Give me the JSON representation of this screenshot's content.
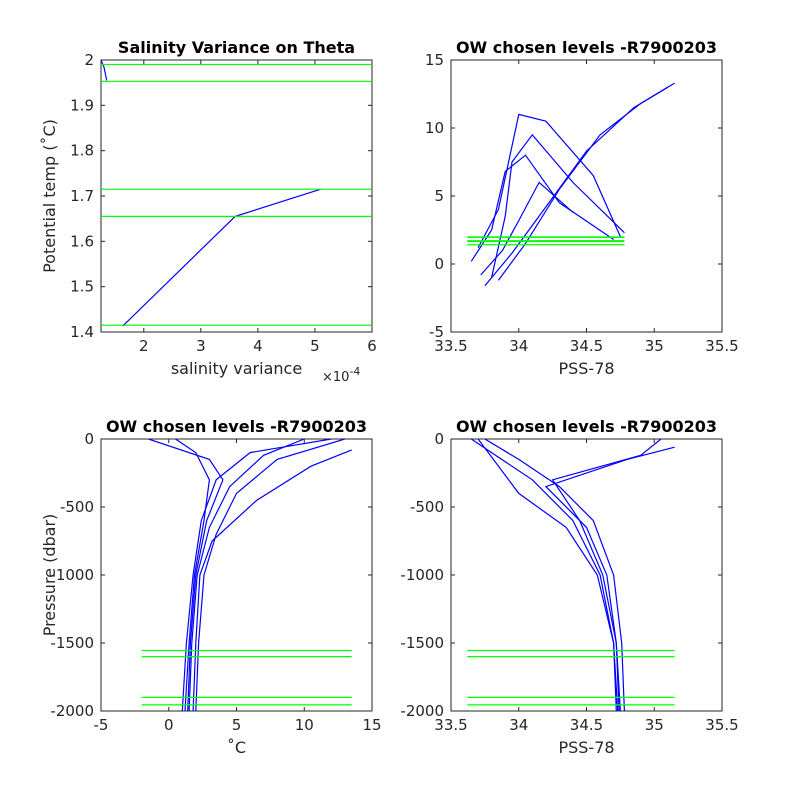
{
  "colors": {
    "profile": "#0000FF",
    "level": "#00FF00",
    "axis": "#262626"
  },
  "chart_data": [
    {
      "type": "line",
      "title": "Salinity Variance on Theta",
      "xlabel": "salinity variance",
      "x_exponent": "×10",
      "x_exponent_power": "-4",
      "ylabel": "Potential temp (˚C)",
      "xlim": [
        1.25,
        6
      ],
      "ylim": [
        1.4,
        2
      ],
      "xticks": [
        "2",
        "3",
        "4",
        "5",
        "6"
      ],
      "yticks": [
        "1.4",
        "1.5",
        "1.6",
        "1.7",
        "1.8",
        "1.9",
        "2"
      ],
      "grid": false,
      "series": [
        {
          "x": [
            1.63,
            3.6,
            5.1
          ],
          "y": [
            1.413,
            1.655,
            1.715
          ]
        },
        {
          "x": [
            1.25,
            1.3,
            1.35
          ],
          "y": [
            2.0,
            1.985,
            1.955
          ]
        }
      ],
      "hlines": [
        1.99,
        1.953,
        1.715,
        1.655,
        1.415
      ]
    },
    {
      "type": "line",
      "title": "OW chosen levels -R7900203",
      "xlabel": "PSS-78",
      "ylabel": "",
      "xlim": [
        33.5,
        35.5
      ],
      "ylim": [
        -5,
        15
      ],
      "xticks": [
        "33.5",
        "34",
        "34.5",
        "35",
        "35.5"
      ],
      "yticks": [
        "-5",
        "0",
        "5",
        "10",
        "15"
      ],
      "grid": false,
      "series": [
        {
          "x": [
            33.85,
            34.05,
            34.3,
            34.6,
            34.9,
            35.1
          ],
          "y": [
            -1.2,
            1.5,
            5.5,
            9.5,
            11.8,
            13.0
          ]
        },
        {
          "x": [
            33.75,
            33.95,
            34.2,
            34.5,
            34.85,
            35.15
          ],
          "y": [
            -1.6,
            0.8,
            4.2,
            8.3,
            11.5,
            13.3
          ]
        },
        {
          "x": [
            33.8,
            33.9,
            33.95,
            34.1,
            34.4,
            34.78
          ],
          "y": [
            -1.0,
            3.5,
            7.5,
            9.5,
            6.0,
            2.3
          ]
        },
        {
          "x": [
            33.65,
            33.8,
            33.9,
            34.05,
            34.3,
            34.7
          ],
          "y": [
            0.2,
            2.5,
            6.8,
            8.0,
            4.5,
            1.8
          ]
        },
        {
          "x": [
            33.7,
            33.85,
            34.0,
            34.2,
            34.55,
            34.75
          ],
          "y": [
            1.2,
            4.0,
            11.0,
            10.5,
            6.5,
            2.0
          ]
        },
        {
          "x": [
            33.72,
            33.88,
            34.0,
            34.15,
            34.4
          ],
          "y": [
            -0.8,
            1.0,
            3.2,
            6.0,
            3.8
          ]
        }
      ],
      "hlines": [
        1.99,
        1.953,
        1.715,
        1.655,
        1.415
      ],
      "hline_xrange": [
        33.62,
        34.78
      ]
    },
    {
      "type": "line",
      "title": "OW chosen levels -R7900203",
      "xlabel": "˚C",
      "ylabel": "Pressure (dbar)",
      "xlim": [
        -5,
        15
      ],
      "ylim": [
        -2000,
        0
      ],
      "xticks": [
        "-5",
        "0",
        "5",
        "10",
        "15"
      ],
      "yticks": [
        "-2000",
        "-1500",
        "-1000",
        "-500",
        "0"
      ],
      "grid": false,
      "series": [
        {
          "x": [
            1.0,
            1.3,
            1.8,
            2.4,
            3.5,
            6.0,
            12.0
          ],
          "y": [
            -2000,
            -1500,
            -1000,
            -600,
            -300,
            -100,
            0
          ]
        },
        {
          "x": [
            2.0,
            2.2,
            2.6,
            3.5,
            5.0,
            8.0,
            13.0
          ],
          "y": [
            -2000,
            -1500,
            -1000,
            -700,
            -400,
            -150,
            0
          ]
        },
        {
          "x": [
            1.5,
            1.7,
            2.1,
            3.0,
            4.5,
            7.0,
            10.0
          ],
          "y": [
            -2000,
            -1500,
            -1000,
            -650,
            -350,
            -120,
            0
          ]
        },
        {
          "x": [
            1.2,
            1.5,
            1.9,
            2.6,
            3.0,
            2.0,
            0.5
          ],
          "y": [
            -2000,
            -1500,
            -1000,
            -600,
            -300,
            -100,
            0
          ]
        },
        {
          "x": [
            1.8,
            2.0,
            2.3,
            3.2,
            6.5,
            10.5,
            13.5
          ],
          "y": [
            -2000,
            -1500,
            -1000,
            -750,
            -450,
            -200,
            -80
          ]
        },
        {
          "x": [
            1.4,
            1.6,
            2.0,
            2.8,
            4.0,
            3.0,
            -1.5
          ],
          "y": [
            -2000,
            -1500,
            -1000,
            -600,
            -300,
            -150,
            0
          ]
        }
      ],
      "hlines": [
        -1555,
        -1600,
        -1900,
        -1955
      ],
      "hline_xrange": [
        -2,
        13.5
      ]
    },
    {
      "type": "line",
      "title": "OW chosen levels -R7900203",
      "xlabel": "PSS-78",
      "ylabel": "",
      "xlim": [
        33.5,
        35.5
      ],
      "ylim": [
        -2000,
        0
      ],
      "xticks": [
        "33.5",
        "34",
        "34.5",
        "35",
        "35.5"
      ],
      "yticks": [
        "-2000",
        "-1500",
        "-1000",
        "-500",
        "0"
      ],
      "grid": false,
      "series": [
        {
          "x": [
            34.72,
            34.7,
            34.6,
            34.4,
            34.1,
            33.8,
            33.65
          ],
          "y": [
            -2000,
            -1500,
            -1000,
            -600,
            -300,
            -100,
            0
          ]
        },
        {
          "x": [
            34.78,
            34.76,
            34.7,
            34.55,
            34.3,
            34.0,
            33.75
          ],
          "y": [
            -2000,
            -1500,
            -1000,
            -600,
            -350,
            -150,
            0
          ]
        },
        {
          "x": [
            34.75,
            34.72,
            34.65,
            34.5,
            34.2,
            34.8,
            35.15
          ],
          "y": [
            -2000,
            -1500,
            -1000,
            -650,
            -350,
            -150,
            -60
          ]
        },
        {
          "x": [
            34.74,
            34.72,
            34.62,
            34.45,
            34.25,
            34.9,
            35.05
          ],
          "y": [
            -2000,
            -1500,
            -1000,
            -600,
            -300,
            -120,
            0
          ]
        },
        {
          "x": [
            34.73,
            34.7,
            34.58,
            34.35,
            34.0,
            33.7
          ],
          "y": [
            -2000,
            -1500,
            -1000,
            -650,
            -400,
            0
          ]
        }
      ],
      "hlines": [
        -1555,
        -1600,
        -1900,
        -1955
      ],
      "hline_xrange": [
        33.62,
        35.15
      ]
    }
  ]
}
